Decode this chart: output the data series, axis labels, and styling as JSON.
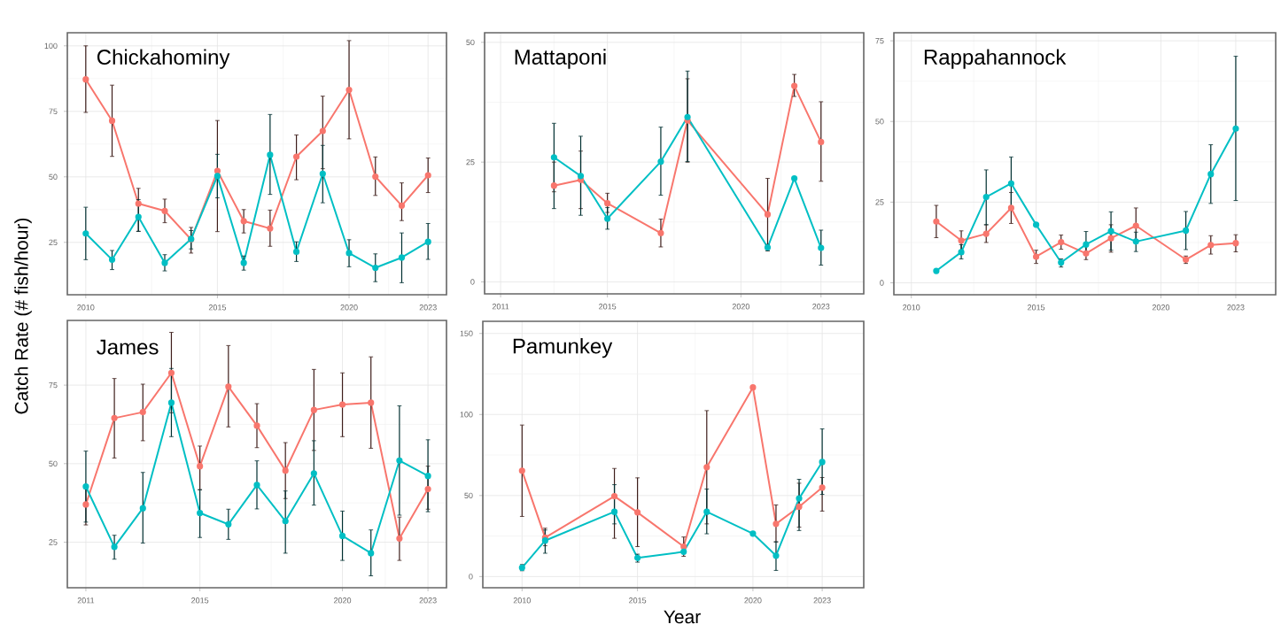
{
  "chart_data": [
    {
      "type": "line",
      "title": "Chickahominy",
      "ylabel": "Catch Rate (# fish/hour)",
      "x": [
        2010,
        2011,
        2012,
        2013,
        2014,
        2015,
        2016,
        2017,
        2018,
        2019,
        2020,
        2021,
        2022,
        2023
      ],
      "xlim": [
        2009.3,
        2023.7
      ],
      "xticks": [
        2010,
        2015,
        2020,
        2023
      ],
      "ylim": [
        5,
        105
      ],
      "yticks": [
        25,
        50,
        75,
        100
      ],
      "grid": true,
      "marker": "circle",
      "line_style": "solid",
      "series": [
        {
          "color": "#f8766d",
          "values": [
            87.2,
            71.4,
            39.8,
            37.0,
            26.1,
            52.3,
            33.1,
            30.3,
            57.7,
            67.5,
            83.2,
            50.1,
            39.0,
            50.6
          ],
          "errors": [
            [
              74.6,
              100
            ],
            [
              57.8,
              85
            ],
            [
              29.2,
              45.6
            ],
            [
              32.5,
              41.5
            ],
            [
              20.9,
              30.7
            ],
            [
              29.1,
              71.5
            ],
            [
              28.6,
              37.5
            ],
            [
              23.5,
              37.3
            ],
            [
              48.9,
              66
            ],
            [
              53.1,
              80.8
            ],
            [
              64.5,
              102
            ],
            [
              42.9,
              57.6
            ],
            [
              33.3,
              47.7
            ],
            [
              44,
              57.2
            ]
          ]
        },
        {
          "color": "#00bfc4",
          "values": [
            28.4,
            18.4,
            34.7,
            17.2,
            26.3,
            50.3,
            17.2,
            58.4,
            21.4,
            51.2,
            20.9,
            15.3,
            19.2,
            25.2
          ],
          "errors": [
            [
              18.4,
              38.4
            ],
            [
              14.6,
              21.9
            ],
            [
              29.2,
              41.3
            ],
            [
              14.1,
              20.3
            ],
            [
              22.5,
              29.5
            ],
            [
              42,
              58.6
            ],
            [
              14.4,
              19.8
            ],
            [
              43.3,
              73.8
            ],
            [
              17.7,
              25.2
            ],
            [
              40.1,
              62
            ],
            [
              15.7,
              26
            ],
            [
              10,
              20.6
            ],
            [
              9.6,
              28.6
            ],
            [
              18.5,
              32.2
            ]
          ]
        }
      ]
    },
    {
      "type": "line",
      "title": "Mattaponi",
      "x": [
        2013,
        2014,
        2015,
        2017,
        2018,
        2021,
        2022,
        2023
      ],
      "xlim": [
        2010.4,
        2024.6
      ],
      "xticks": [
        2011,
        2015,
        2020,
        2023
      ],
      "ylim": [
        -2.5,
        52
      ],
      "yticks": [
        0,
        25,
        50
      ],
      "grid": true,
      "marker": "circle",
      "line_style": "solid",
      "series": [
        {
          "color": "#f8766d",
          "values": [
            20.1,
            21.3,
            16.4,
            10.2,
            33.7,
            14.1,
            40.9,
            29.2
          ],
          "errors": [
            [
              18.8,
              25
            ],
            [
              15.3,
              27.3
            ],
            [
              14.5,
              18.5
            ],
            [
              7.3,
              13.1
            ],
            [
              25,
              42.4
            ],
            [
              6.5,
              21.6
            ],
            [
              38.7,
              43.3
            ],
            [
              21,
              37.6
            ]
          ]
        },
        {
          "color": "#00bfc4",
          "values": [
            26.0,
            22.1,
            13.2,
            25.1,
            34.4,
            7.2,
            21.6,
            7.1
          ],
          "errors": [
            [
              15.3,
              33.1
            ],
            [
              13.9,
              30.4
            ],
            [
              11,
              15.5
            ],
            [
              18.1,
              32.3
            ],
            [
              25.1,
              44
            ],
            [
              6.5,
              7.8
            ],
            null,
            [
              3.5,
              10.8
            ]
          ]
        }
      ]
    },
    {
      "type": "line",
      "title": "Rappahannock",
      "x": [
        2011,
        2012,
        2013,
        2014,
        2015,
        2016,
        2017,
        2018,
        2019,
        2021,
        2022,
        2023
      ],
      "xlim": [
        2009.3,
        2024.6
      ],
      "xticks": [
        2010,
        2015,
        2020,
        2023
      ],
      "ylim": [
        -3.7,
        77.5
      ],
      "yticks": [
        0,
        25,
        50,
        75
      ],
      "grid": true,
      "marker": "circle",
      "line_style": "solid",
      "series": [
        {
          "color": "#f8766d",
          "values": [
            19.0,
            13.1,
            15.2,
            23.2,
            8.1,
            12.6,
            9.1,
            13.8,
            17.7,
            7.2,
            11.7,
            12.3
          ],
          "errors": [
            [
              14,
              24
            ],
            [
              10.1,
              16.1
            ],
            [
              12.5,
              18
            ],
            [
              18.4,
              28
            ],
            [
              6,
              10.1
            ],
            [
              10.4,
              14.8
            ],
            [
              7.2,
              11.9
            ],
            [
              9.5,
              18
            ],
            [
              12.4,
              23.2
            ],
            [
              6,
              8.3
            ],
            [
              8.9,
              14.6
            ],
            [
              9.6,
              14.9
            ]
          ]
        },
        {
          "color": "#00bfc4",
          "values": [
            3.7,
            9.5,
            26.6,
            30.8,
            18.0,
            6.3,
            11.9,
            16.0,
            12.8,
            16.2,
            33.7,
            47.8
          ],
          "errors": [
            null,
            [
              7.4,
              11.8
            ],
            [
              18,
              35
            ],
            [
              22.6,
              39
            ],
            null,
            [
              4.9,
              7.4
            ],
            [
              9.2,
              15.9
            ],
            [
              10.1,
              22
            ],
            [
              9.7,
              15.7
            ],
            [
              10.3,
              22.1
            ],
            [
              24.6,
              42.8
            ],
            [
              25.5,
              70.2
            ]
          ]
        }
      ]
    },
    {
      "type": "line",
      "title": "James",
      "x": [
        2011,
        2012,
        2013,
        2014,
        2015,
        2016,
        2017,
        2018,
        2019,
        2020,
        2021,
        2022,
        2023
      ],
      "xlim": [
        2010.35,
        2023.65
      ],
      "xticks": [
        2011,
        2015,
        2020,
        2023
      ],
      "ylim": [
        10.5,
        95.6
      ],
      "yticks": [
        25,
        50,
        75
      ],
      "grid": true,
      "marker": "circle",
      "line_style": "solid",
      "series": [
        {
          "color": "#f8766d",
          "values": [
            37.0,
            64.5,
            66.4,
            78.9,
            49.2,
            74.5,
            62.1,
            47.8,
            67.1,
            68.8,
            69.4,
            26.2,
            41.9
          ],
          "errors": [
            [
              30.5,
              43
            ],
            [
              51.8,
              77.1
            ],
            [
              57.3,
              75.3
            ],
            [
              66.2,
              91.8
            ],
            [
              41.7,
              55.6
            ],
            [
              61.7,
              87.6
            ],
            [
              55.1,
              69.1
            ],
            [
              38.9,
              56.7
            ],
            [
              54.2,
              80
            ],
            [
              58.6,
              78.9
            ],
            [
              54.9,
              84
            ],
            [
              19.2,
              33
            ],
            [
              35.5,
              49.2
            ]
          ]
        },
        {
          "color": "#00bfc4",
          "values": [
            42.7,
            23.5,
            35.8,
            69.4,
            34.3,
            30.7,
            43.2,
            31.7,
            46.9,
            27.0,
            21.5,
            51.0,
            46.1
          ],
          "errors": [
            [
              31.4,
              54
            ],
            [
              19.6,
              27.2
            ],
            [
              24.7,
              47.2
            ],
            [
              58.6,
              80.3
            ],
            [
              26.5,
              41.7
            ],
            [
              25.9,
              35.5
            ],
            [
              35.6,
              50.9
            ],
            [
              21.5,
              41.3
            ],
            [
              36.8,
              57.3
            ],
            [
              19.2,
              34.9
            ],
            [
              14.3,
              28.9
            ],
            [
              33.6,
              68.4
            ],
            [
              34.7,
              57.6
            ]
          ]
        }
      ]
    },
    {
      "type": "line",
      "title": "Pamunkey",
      "xlabel": "Year",
      "x": [
        2010,
        2011,
        2014,
        2015,
        2017,
        2018,
        2020,
        2021,
        2022,
        2023
      ],
      "xlim": [
        2008.3,
        2024.8
      ],
      "xticks": [
        2010,
        2015,
        2020,
        2023
      ],
      "ylim": [
        -6.9,
        157.5
      ],
      "yticks": [
        0,
        50,
        100,
        150
      ],
      "grid": true,
      "marker": "circle",
      "line_style": "solid",
      "series": [
        {
          "color": "#f8766d",
          "values": [
            65.3,
            24.0,
            49.6,
            39.6,
            18.5,
            67.5,
            116.7,
            32.5,
            43.1,
            54.9
          ],
          "errors": [
            [
              37.1,
              93.5
            ],
            [
              19,
              29.8
            ],
            [
              23.6,
              66.7
            ],
            [
              18.5,
              60.9
            ],
            [
              12.5,
              24.4
            ],
            [
              32.5,
              102.4
            ],
            null,
            [
              21.3,
              44.2
            ],
            [
              30.5,
              57.6
            ],
            [
              40.4,
              61.1
            ]
          ]
        },
        {
          "color": "#00bfc4",
          "values": [
            5.5,
            22.2,
            40.0,
            11.5,
            15.3,
            40.0,
            26.5,
            12.9,
            48.2,
            70.7
          ],
          "errors": [
            [
              3.6,
              7.4
            ],
            [
              14.4,
              28.7
            ],
            [
              32.5,
              56.7
            ],
            [
              8.9,
              13.8
            ],
            null,
            [
              26.4,
              54
            ],
            null,
            [
              3.8,
              21.5
            ],
            [
              28.4,
              60
            ],
            [
              50.7,
              91.1
            ]
          ]
        }
      ]
    }
  ]
}
